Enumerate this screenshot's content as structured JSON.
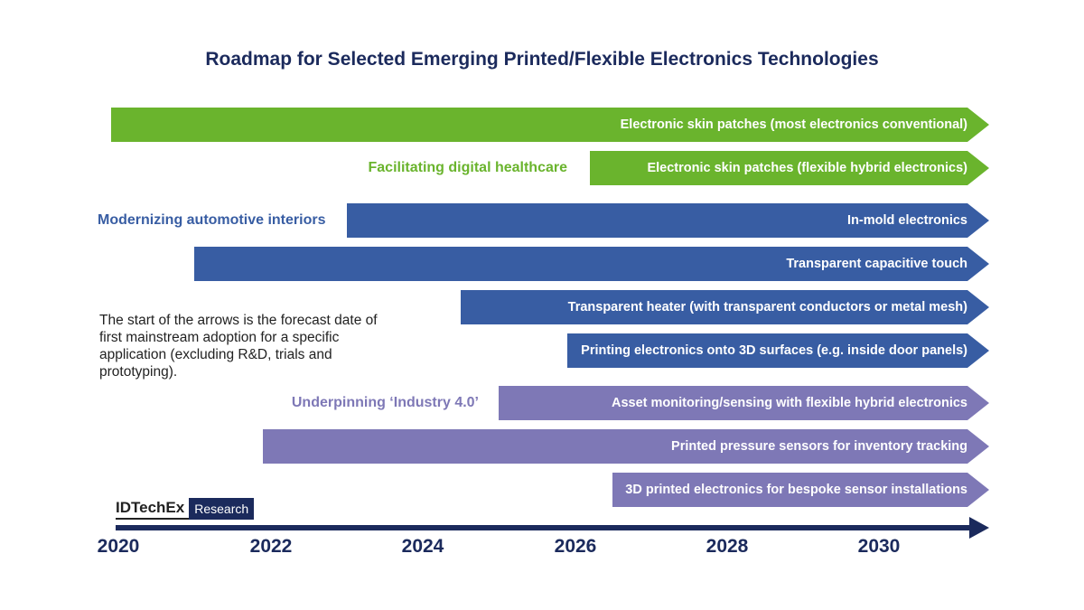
{
  "title": "Roadmap for Selected Emerging Printed/Flexible Electronics Technologies",
  "colors": {
    "green": "#6ab42d",
    "blue": "#385da3",
    "purple": "#7e78b6",
    "navy": "#1b2a5c"
  },
  "groups": {
    "healthcare": "Facilitating digital healthcare",
    "automotive": "Modernizing automotive interiors",
    "industry": "Underpinning ‘Industry 4.0’"
  },
  "arrows": [
    {
      "label": "Electronic skin patches (most electronics conventional)",
      "group": "healthcare",
      "start_year": 2019.9
    },
    {
      "label": "Electronic skin patches (flexible hybrid electronics)",
      "group": "healthcare",
      "start_year": 2026.2
    },
    {
      "label": "In-mold electronics",
      "group": "automotive",
      "start_year": 2023.0
    },
    {
      "label": "Transparent capacitive touch",
      "group": "automotive",
      "start_year": 2021.0
    },
    {
      "label": "Transparent heater (with transparent conductors or metal mesh)",
      "group": "automotive",
      "start_year": 2024.5
    },
    {
      "label": "Printing electronics onto 3D surfaces (e.g. inside door panels)",
      "group": "automotive",
      "start_year": 2025.9
    },
    {
      "label": "Asset monitoring/sensing with flexible hybrid electronics",
      "group": "industry",
      "start_year": 2025.0
    },
    {
      "label": "Printed pressure sensors for inventory tracking",
      "group": "industry",
      "start_year": 2021.9
    },
    {
      "label": "3D printed electronics for bespoke sensor installations",
      "group": "industry",
      "start_year": 2026.5
    }
  ],
  "note": "The start of the arrows is the forecast date of first mainstream adoption for a specific application (excluding R&D, trials and prototyping).",
  "logo": {
    "name": "IDTechEx",
    "sub": "Research"
  },
  "years": [
    "2020",
    "2022",
    "2024",
    "2026",
    "2028",
    "2030"
  ]
}
